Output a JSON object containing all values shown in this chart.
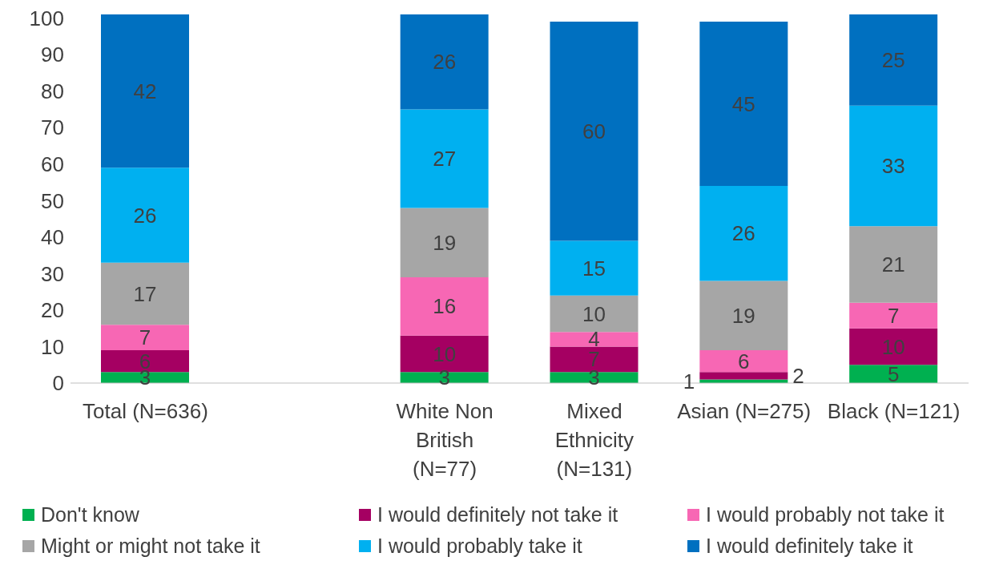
{
  "chart_data": {
    "type": "bar",
    "stacked": true,
    "categories": [
      "Total (N=636)",
      null,
      "White Non British (N=77)",
      "Mixed Ethnicity (N=131)",
      "Asian (N=275)",
      "Black (N=121)"
    ],
    "series": [
      {
        "name": "Don't know",
        "color": "#00b050",
        "values": [
          3,
          null,
          3,
          3,
          1,
          5
        ]
      },
      {
        "name": "I would definitely not take it",
        "color": "#a50062",
        "values": [
          6,
          null,
          10,
          7,
          2,
          10
        ]
      },
      {
        "name": "I would probably not take it",
        "color": "#f767b4",
        "values": [
          7,
          null,
          16,
          4,
          6,
          7
        ]
      },
      {
        "name": "Might or might not take it",
        "color": "#a6a6a6",
        "values": [
          17,
          null,
          19,
          10,
          19,
          21
        ]
      },
      {
        "name": "I would probably take it",
        "color": "#00b0f0",
        "values": [
          26,
          null,
          27,
          15,
          26,
          33
        ]
      },
      {
        "name": "I would definitely take it",
        "color": "#0070c0",
        "values": [
          42,
          null,
          26,
          60,
          45,
          25
        ]
      }
    ],
    "ylim": [
      0,
      101
    ],
    "yticks": [
      0,
      10,
      20,
      30,
      40,
      50,
      60,
      70,
      80,
      90,
      100
    ],
    "grid": false,
    "legend": "bottom",
    "data_labels": true
  }
}
